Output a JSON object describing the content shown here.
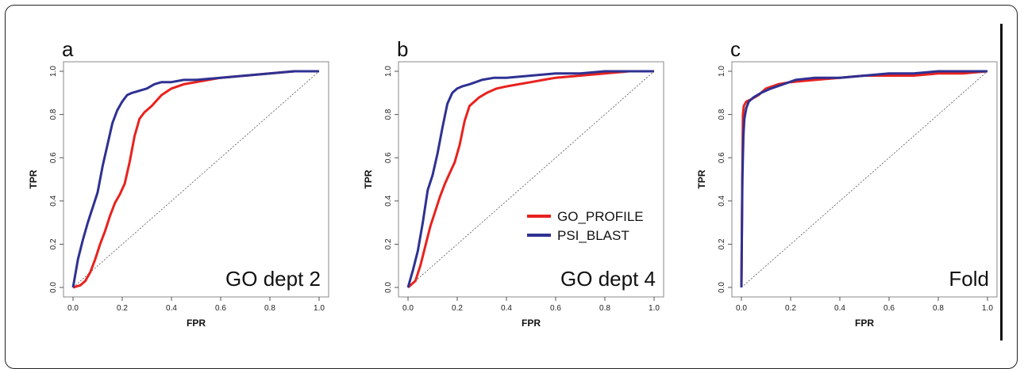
{
  "colors": {
    "go_profile": "#e8221e",
    "psi_blast": "#2e3192",
    "diagonal": "#555555",
    "frame": "#888888"
  },
  "legend": {
    "placement": "center-right of panel b",
    "entries": [
      "GO_PROFILE",
      "PSI_BLAST"
    ]
  },
  "chart_data": [
    {
      "type": "line",
      "panel_letter": "a",
      "annotation": "GO dept 2",
      "xlabel": "FPR",
      "ylabel": "TPR",
      "xlim": [
        0,
        1
      ],
      "ylim": [
        0,
        1
      ],
      "x_ticks": [
        "0.0",
        "0.2",
        "0.4",
        "0.6",
        "0.8",
        "1.0"
      ],
      "y_ticks": [
        "0.0",
        "0.2",
        "0.4",
        "0.6",
        "0.8",
        "1.0"
      ],
      "grid": false,
      "diagonal": true,
      "series": [
        {
          "name": "GO_PROFILE",
          "x": [
            0,
            0.03,
            0.05,
            0.07,
            0.09,
            0.11,
            0.13,
            0.15,
            0.17,
            0.19,
            0.21,
            0.23,
            0.25,
            0.27,
            0.29,
            0.32,
            0.36,
            0.4,
            0.45,
            0.5,
            0.55,
            0.6,
            0.7,
            0.8,
            0.9,
            1.0
          ],
          "y": [
            0,
            0.01,
            0.03,
            0.07,
            0.13,
            0.2,
            0.26,
            0.33,
            0.39,
            0.43,
            0.48,
            0.58,
            0.7,
            0.78,
            0.81,
            0.84,
            0.89,
            0.92,
            0.94,
            0.95,
            0.96,
            0.97,
            0.98,
            0.99,
            1.0,
            1.0
          ]
        },
        {
          "name": "PSI_BLAST",
          "x": [
            0,
            0.02,
            0.04,
            0.06,
            0.08,
            0.1,
            0.12,
            0.14,
            0.16,
            0.18,
            0.2,
            0.22,
            0.24,
            0.27,
            0.3,
            0.33,
            0.36,
            0.4,
            0.45,
            0.5,
            0.6,
            0.7,
            0.8,
            0.9,
            1.0
          ],
          "y": [
            0,
            0.13,
            0.22,
            0.3,
            0.37,
            0.44,
            0.56,
            0.66,
            0.76,
            0.82,
            0.86,
            0.89,
            0.9,
            0.91,
            0.92,
            0.94,
            0.95,
            0.95,
            0.96,
            0.96,
            0.97,
            0.98,
            0.99,
            1.0,
            1.0
          ]
        }
      ]
    },
    {
      "type": "line",
      "panel_letter": "b",
      "annotation": "GO dept 4",
      "xlabel": "FPR",
      "ylabel": "TPR",
      "xlim": [
        0,
        1
      ],
      "ylim": [
        0,
        1
      ],
      "x_ticks": [
        "0.0",
        "0.2",
        "0.4",
        "0.6",
        "0.8",
        "1.0"
      ],
      "y_ticks": [
        "0.0",
        "0.2",
        "0.4",
        "0.6",
        "0.8",
        "1.0"
      ],
      "grid": false,
      "diagonal": true,
      "series": [
        {
          "name": "GO_PROFILE",
          "x": [
            0,
            0.03,
            0.05,
            0.07,
            0.09,
            0.11,
            0.13,
            0.15,
            0.17,
            0.19,
            0.21,
            0.23,
            0.25,
            0.27,
            0.29,
            0.32,
            0.36,
            0.4,
            0.45,
            0.5,
            0.55,
            0.6,
            0.7,
            0.8,
            0.9,
            1.0
          ],
          "y": [
            0,
            0.03,
            0.1,
            0.19,
            0.28,
            0.35,
            0.42,
            0.48,
            0.53,
            0.58,
            0.66,
            0.77,
            0.84,
            0.86,
            0.88,
            0.9,
            0.92,
            0.93,
            0.94,
            0.95,
            0.96,
            0.97,
            0.98,
            0.99,
            1.0,
            1.0
          ]
        },
        {
          "name": "PSI_BLAST",
          "x": [
            0,
            0.02,
            0.04,
            0.06,
            0.08,
            0.1,
            0.12,
            0.14,
            0.16,
            0.18,
            0.2,
            0.22,
            0.25,
            0.3,
            0.35,
            0.4,
            0.5,
            0.6,
            0.7,
            0.8,
            0.9,
            1.0
          ],
          "y": [
            0,
            0.08,
            0.17,
            0.3,
            0.45,
            0.52,
            0.62,
            0.74,
            0.85,
            0.9,
            0.92,
            0.93,
            0.94,
            0.96,
            0.97,
            0.97,
            0.98,
            0.99,
            0.99,
            1.0,
            1.0,
            1.0
          ]
        }
      ]
    },
    {
      "type": "line",
      "panel_letter": "c",
      "annotation": "Fold",
      "xlabel": "FPR",
      "ylabel": "TPR",
      "xlim": [
        0,
        1
      ],
      "ylim": [
        0,
        1
      ],
      "x_ticks": [
        "0.0",
        "0.2",
        "0.4",
        "0.6",
        "0.8",
        "1.0"
      ],
      "y_ticks": [
        "0.0",
        "0.2",
        "0.4",
        "0.6",
        "0.8",
        "1.0"
      ],
      "grid": false,
      "diagonal": true,
      "series": [
        {
          "name": "GO_PROFILE",
          "x": [
            0,
            0.003,
            0.006,
            0.01,
            0.02,
            0.04,
            0.07,
            0.1,
            0.15,
            0.2,
            0.3,
            0.4,
            0.5,
            0.6,
            0.7,
            0.8,
            0.9,
            1.0
          ],
          "y": [
            0,
            0.4,
            0.8,
            0.84,
            0.86,
            0.87,
            0.89,
            0.92,
            0.94,
            0.95,
            0.96,
            0.97,
            0.98,
            0.98,
            0.98,
            0.99,
            0.99,
            1.0
          ]
        },
        {
          "name": "PSI_BLAST",
          "x": [
            0,
            0.004,
            0.008,
            0.012,
            0.02,
            0.03,
            0.05,
            0.08,
            0.12,
            0.17,
            0.22,
            0.3,
            0.4,
            0.5,
            0.6,
            0.7,
            0.8,
            0.9,
            1.0
          ],
          "y": [
            0,
            0.5,
            0.7,
            0.78,
            0.83,
            0.86,
            0.88,
            0.9,
            0.92,
            0.94,
            0.96,
            0.97,
            0.97,
            0.98,
            0.99,
            0.99,
            1.0,
            1.0,
            1.0
          ]
        }
      ]
    }
  ]
}
